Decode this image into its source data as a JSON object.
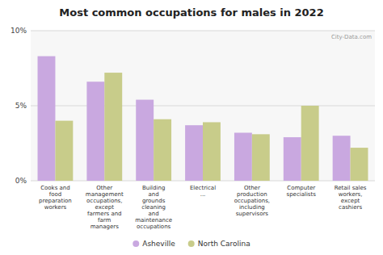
{
  "chart_data": {
    "type": "bar",
    "title": "Most common occupations for males in 2022",
    "categories": [
      "Cooks and\nfood\npreparation\nworkers",
      "Other\nmanagement\noccupations,\nexcept\nfarmers and\nfarm\nmanagers",
      "Building\nand\ngrounds\ncleaning\nand\nmaintenance\noccupations",
      "Electrical\n...",
      "Other\nproduction\noccupations,\nincluding\nsupervisors",
      "Computer\nspecialists",
      "Retail sales\nworkers,\nexcept\ncashiers"
    ],
    "series": [
      {
        "name": "Asheville",
        "color": "#c9a8e0",
        "values": [
          8.3,
          6.6,
          5.4,
          3.7,
          3.2,
          2.9,
          3.0
        ]
      },
      {
        "name": "North Carolina",
        "color": "#c8cc8a",
        "values": [
          4.0,
          7.2,
          4.1,
          3.9,
          3.1,
          5.0,
          2.2
        ]
      }
    ],
    "ylim": [
      0,
      10
    ],
    "yticks": [
      {
        "value": 0,
        "label": "0%"
      },
      {
        "value": 5,
        "label": "5%"
      },
      {
        "value": 10,
        "label": "10%"
      }
    ],
    "grid": true,
    "legend": "bottom",
    "annotations": [
      "City-Data.com"
    ]
  }
}
